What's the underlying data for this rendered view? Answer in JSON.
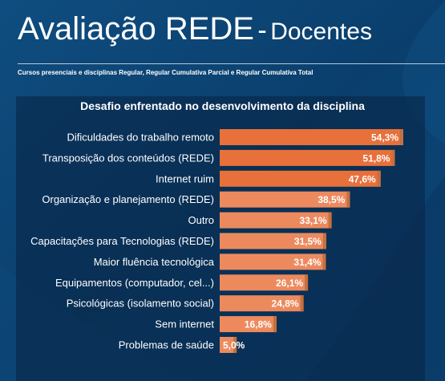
{
  "header": {
    "title_main": "Avaliação REDE",
    "title_sep": "-",
    "title_sub": "Docentes",
    "subtitle": "Cursos presenciais e disciplinas Regular, Regular Cumulativa Parcial e Regular Cumulativa Total"
  },
  "colors": {
    "background": "#0b3f6e",
    "bar_dark": "#e8703a",
    "bar_light": "#ec8a5e",
    "bar_shadow": "#c4703f",
    "text": "#ffffff"
  },
  "chart_data": {
    "type": "bar",
    "orientation": "horizontal",
    "title": "Desafio enfrentado no desenvolvimento da disciplina",
    "categories": [
      "Dificuldades do trabalho remoto",
      "Transposição dos conteúdos (REDE)",
      "Internet ruim",
      "Organização e planejamento (REDE)",
      "Outro",
      "Capacitações para Tecnologias (REDE)",
      "Maior fluência tecnológica",
      "Equipamentos (computador, cel...)",
      "Psicológicas (isolamento social)",
      "Sem internet",
      "Problemas de saúde"
    ],
    "values": [
      54.3,
      51.8,
      47.6,
      38.5,
      33.1,
      31.5,
      31.4,
      26.1,
      24.8,
      16.8,
      5.0
    ],
    "value_labels": [
      "54,3%",
      "51,8%",
      "47,6%",
      "38,5%",
      "33,1%",
      "31,5%",
      "31,4%",
      "26,1%",
      "24,8%",
      "16,8%",
      "5,0%"
    ],
    "unit": "%",
    "xlim": [
      0,
      54.3
    ],
    "grid": false,
    "legend": "none"
  }
}
